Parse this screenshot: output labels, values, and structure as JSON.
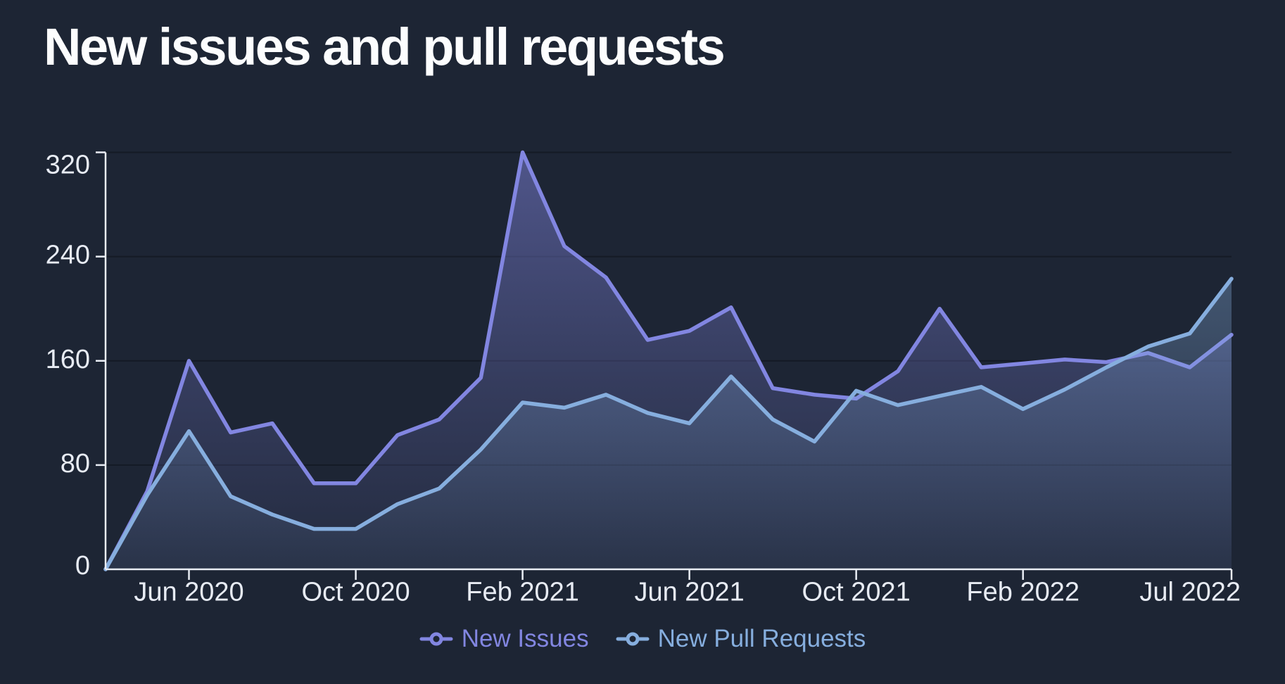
{
  "title": "New issues and pull requests",
  "colors": {
    "background": "#1D2534",
    "title_text": "#FCFDFE",
    "axis": "#E9EDF4",
    "axis_label_text": "#E7EBF3",
    "grid_line": "rgba(0,0,0,0.28)",
    "issues_accent": "#8286E1",
    "pull_requests_accent": "#86AEDE"
  },
  "chart_data": {
    "type": "area",
    "title": "New issues and pull requests",
    "xlabel": "",
    "ylabel": "",
    "ylim": [
      0,
      320
    ],
    "y_ticks": [
      0,
      80,
      160,
      240,
      320
    ],
    "grid": "horizontal",
    "legend_position": "bottom-center",
    "x": [
      "Apr 2020",
      "May 2020",
      "Jun 2020",
      "Jul 2020",
      "Aug 2020",
      "Sep 2020",
      "Oct 2020",
      "Nov 2020",
      "Dec 2020",
      "Jan 2021",
      "Feb 2021",
      "Mar 2021",
      "Apr 2021",
      "May 2021",
      "Jun 2021",
      "Jul 2021",
      "Aug 2021",
      "Sep 2021",
      "Oct 2021",
      "Nov 2021",
      "Dec 2021",
      "Jan 2022",
      "Feb 2022",
      "Mar 2022",
      "Apr 2022",
      "May 2022",
      "Jun 2022",
      "Jul 2022"
    ],
    "x_tick_labels": [
      "Jun 2020",
      "Oct 2020",
      "Feb 2021",
      "Jun 2021",
      "Oct 2021",
      "Feb 2022",
      "Jul 2022"
    ],
    "x_tick_indices": [
      2,
      6,
      10,
      14,
      18,
      22,
      27
    ],
    "series": [
      {
        "name": "New Issues",
        "color": "#8286E1",
        "values": [
          0,
          60,
          160,
          105,
          112,
          66,
          66,
          103,
          115,
          147,
          320,
          248,
          224,
          176,
          183,
          201,
          139,
          134,
          131,
          152,
          200,
          155,
          158,
          161,
          159,
          166,
          155,
          180
        ]
      },
      {
        "name": "New Pull Requests",
        "color": "#86AEDE",
        "values": [
          0,
          57,
          106,
          56,
          42,
          31,
          31,
          50,
          62,
          92,
          128,
          124,
          134,
          120,
          112,
          148,
          115,
          98,
          137,
          126,
          133,
          140,
          123,
          138,
          155,
          171,
          181,
          223
        ]
      }
    ]
  },
  "legend": {
    "items": [
      {
        "label": "New Issues",
        "color": "#8286E1",
        "marker": "line-circle-icon"
      },
      {
        "label": "New Pull Requests",
        "color": "#86AEDE",
        "marker": "line-circle-icon"
      }
    ]
  }
}
